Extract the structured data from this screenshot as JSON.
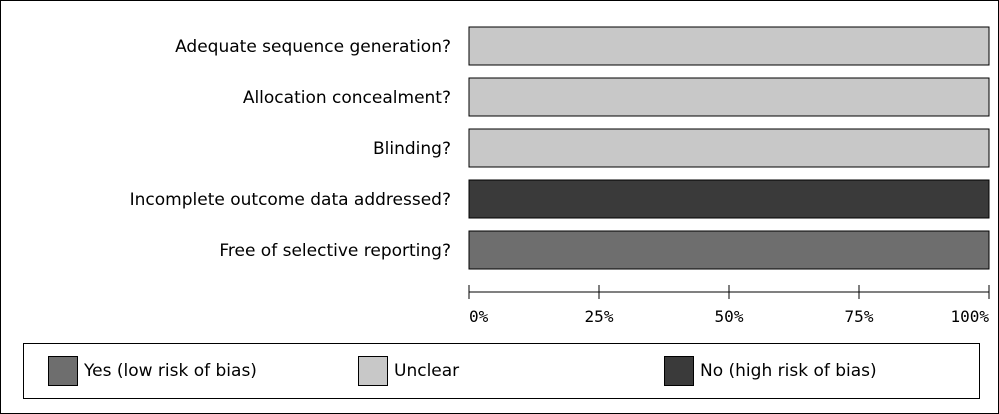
{
  "chart_data": {
    "type": "bar",
    "orientation": "horizontal",
    "stacked": true,
    "categories": [
      "Adequate sequence generation?",
      "Allocation concealment?",
      "Blinding?",
      "Incomplete outcome data addressed?",
      "Free of selective reporting?"
    ],
    "series": [
      {
        "name": "Yes (low risk of bias)",
        "color": "#6e6e6e",
        "values": [
          0,
          0,
          0,
          0,
          100
        ]
      },
      {
        "name": "Unclear",
        "color": "#c8c8c8",
        "values": [
          100,
          100,
          100,
          0,
          0
        ]
      },
      {
        "name": "No (high risk of bias)",
        "color": "#3a3a3a",
        "values": [
          0,
          0,
          0,
          100,
          0
        ]
      }
    ],
    "xticks": [
      "0%",
      "25%",
      "50%",
      "75%",
      "100%"
    ],
    "xlim": [
      0,
      100
    ],
    "grid": false,
    "legend_placement": "bottom"
  },
  "legend": {
    "items": [
      {
        "label": "Yes (low risk of bias)",
        "color": "#6e6e6e"
      },
      {
        "label": "Unclear",
        "color": "#c8c8c8"
      },
      {
        "label": "No (high risk of bias)",
        "color": "#3a3a3a"
      }
    ]
  }
}
